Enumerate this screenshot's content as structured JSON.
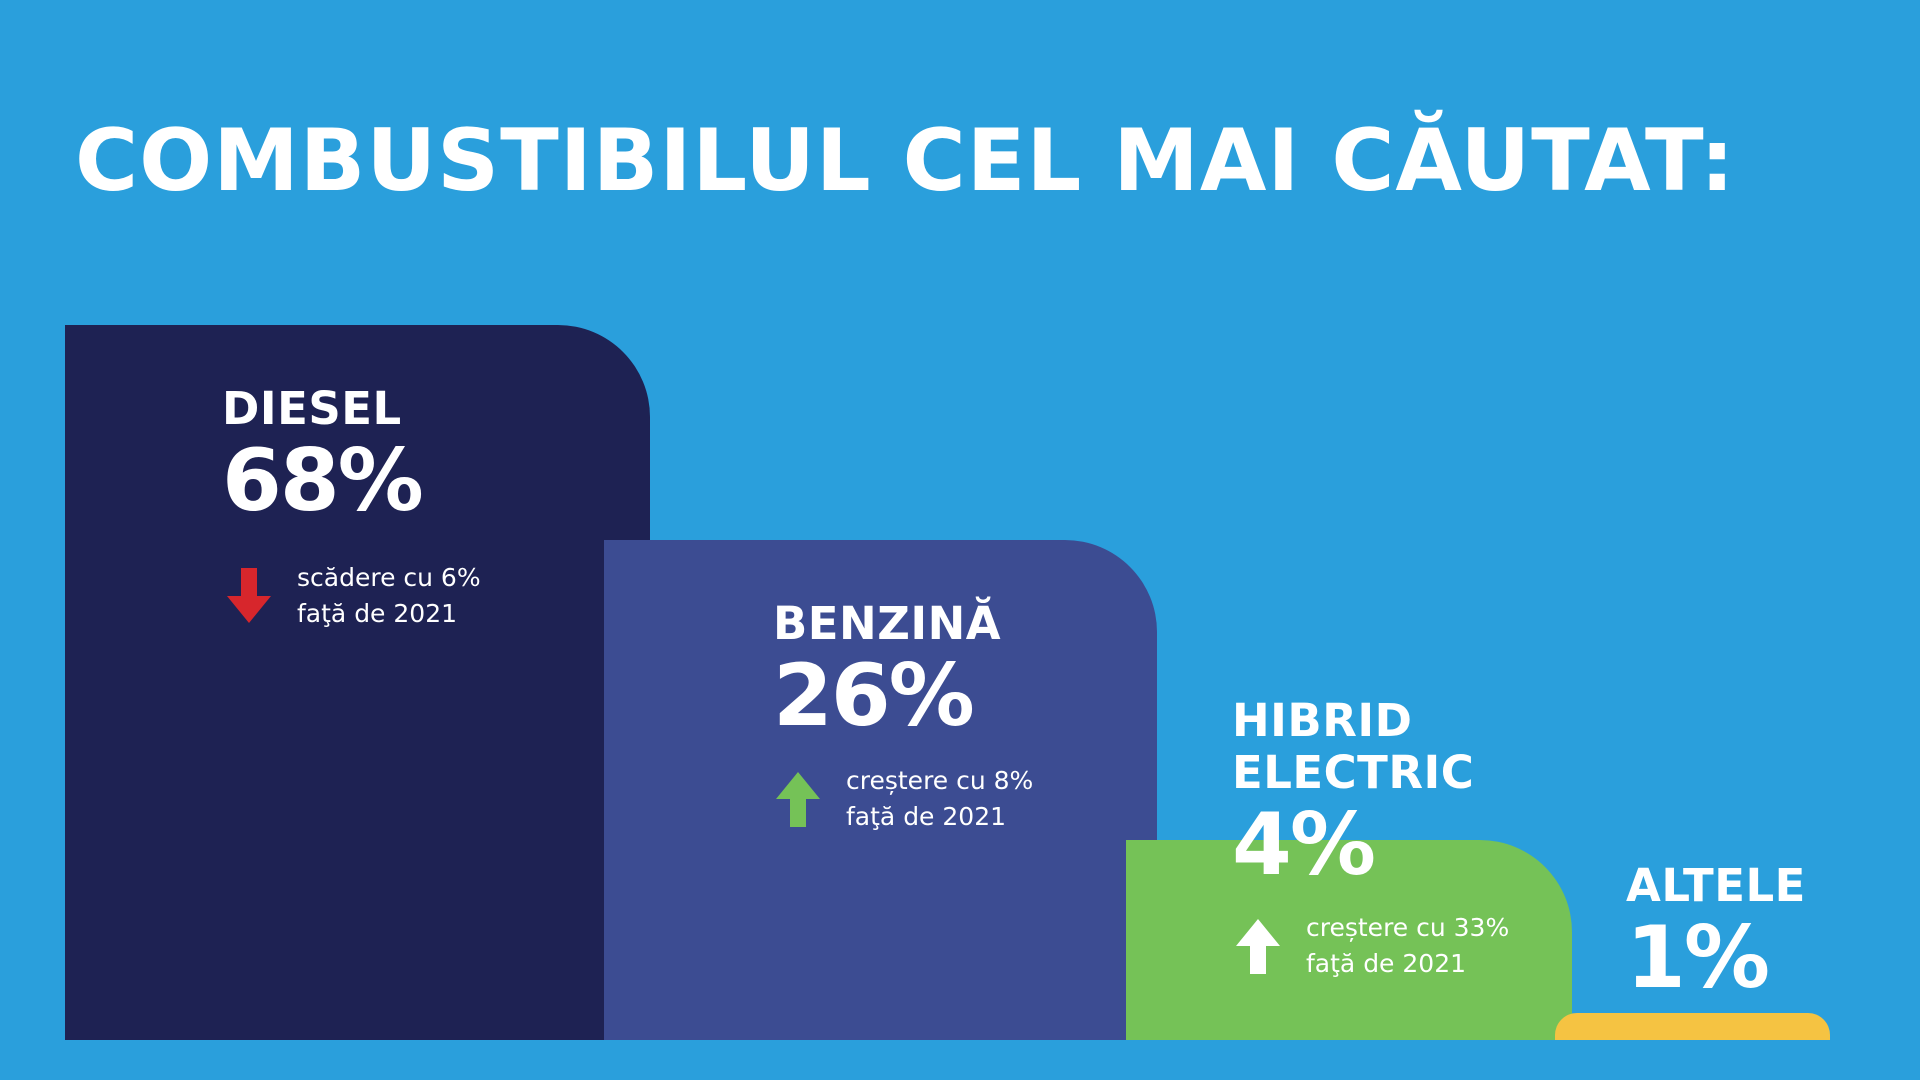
{
  "title": "COMBUSTIBILUL CEL MAI CĂUTAT:",
  "colors": {
    "background": "#2a9fdc",
    "diesel": "#1e2253",
    "benzina": "#3c4c92",
    "hibrid": "#75c257",
    "altele": "#f5c342",
    "arrow_down": "#d7262c",
    "arrow_up_green": "#75c257",
    "arrow_up_white": "#ffffff"
  },
  "chart_data": {
    "type": "bar",
    "title": "COMBUSTIBILUL CEL MAI CĂUTAT:",
    "categories": [
      "DIESEL",
      "BENZINĂ",
      "HIBRID\nELECTRIC",
      "ALTELE"
    ],
    "values": [
      68,
      26,
      4,
      1
    ],
    "value_labels": [
      "68%",
      "26%",
      "4%",
      "1%"
    ],
    "changes": [
      {
        "direction": "down",
        "line1": "scădere cu 6%",
        "line2": "faţă de 2021",
        "icon": "arrow-down-icon"
      },
      {
        "direction": "up",
        "line1": "creștere cu 8%",
        "line2": "faţă de 2021",
        "icon": "arrow-up-icon"
      },
      {
        "direction": "up",
        "line1": "creștere cu 33%",
        "line2": "faţă de 2021",
        "icon": "arrow-up-icon"
      },
      null
    ],
    "xlabel": "",
    "ylabel": "",
    "grid": false,
    "legend": "none"
  }
}
